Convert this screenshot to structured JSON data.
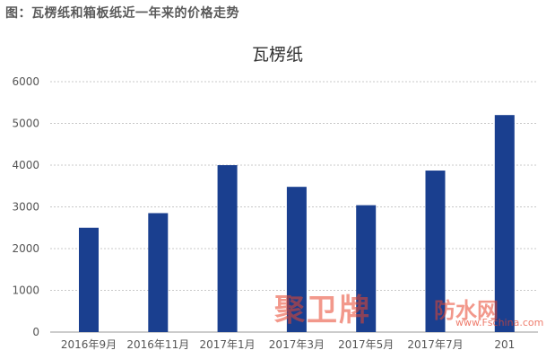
{
  "caption": "图：瓦楞纸和箱板纸近一年来的价格走势",
  "watermark": {
    "brand": "聚卫牌",
    "site": "防水网",
    "url": "www.Fschina.com"
  },
  "colors": {
    "bar": "#1a3f8f",
    "grid": "#c8c8c8",
    "watermark": "#e8452e"
  },
  "chart_data": {
    "type": "bar",
    "title": "瓦楞纸",
    "xlabel": "",
    "ylabel": "",
    "ylim": [
      0,
      6000
    ],
    "yticks": [
      "0",
      "1000",
      "2000",
      "3000",
      "4000",
      "5000",
      "6000"
    ],
    "grid": true,
    "categories": [
      "2016年9月",
      "2016年11月",
      "2017年1月",
      "2017年3月",
      "2017年5月",
      "2017年7月",
      "201"
    ],
    "values": [
      2500,
      2850,
      4000,
      3480,
      3040,
      3870,
      5200
    ]
  }
}
